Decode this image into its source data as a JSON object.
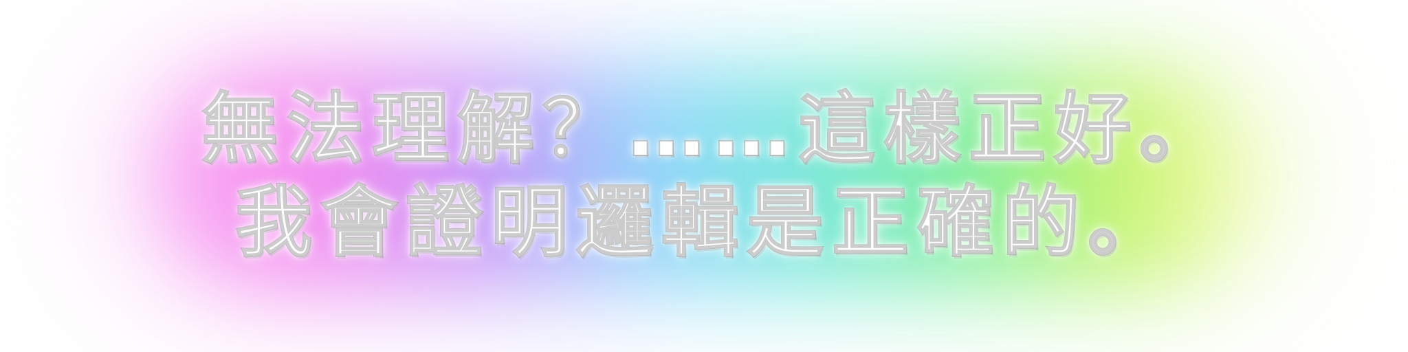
{
  "caption": {
    "line_1": "無法理解？……這樣正好。",
    "line_2": "我會證明邏輯是正確的。"
  },
  "colors": {
    "text": "#ffffff",
    "glow_pink": "#f58df0",
    "glow_blue": "#8fd8fb",
    "glow_green": "#83ef9f",
    "glow_yellow": "#c6f46a"
  }
}
